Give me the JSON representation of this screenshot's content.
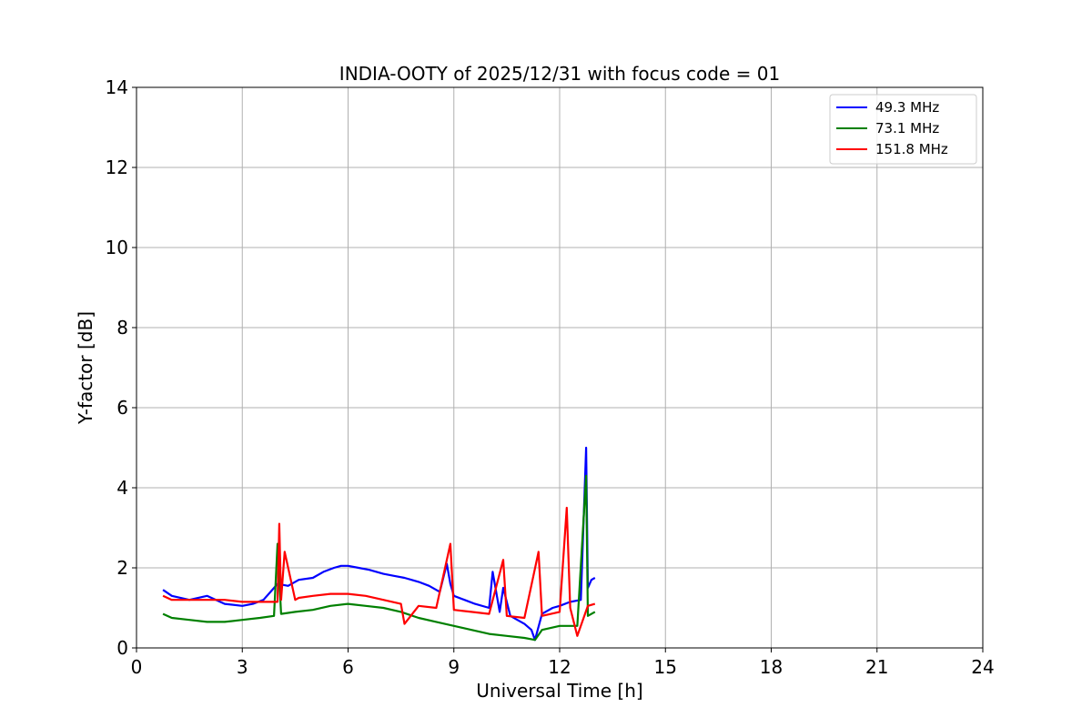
{
  "chart_data": {
    "type": "line",
    "title": "INDIA-OOTY of 2025/12/31 with focus code = 01",
    "xlabel": "Universal Time [h]",
    "ylabel": "Y-factor [dB]",
    "xlim": [
      0,
      24
    ],
    "ylim": [
      0,
      14
    ],
    "xticks": [
      0,
      3,
      6,
      9,
      12,
      15,
      18,
      21,
      24
    ],
    "yticks": [
      0,
      2,
      4,
      6,
      8,
      10,
      12,
      14
    ],
    "grid": true,
    "legend_position": "top-right",
    "series": [
      {
        "name": "49.3 MHz",
        "legend_label": "  49.3 MHz",
        "color": "#0000ff",
        "x": [
          0.75,
          1.0,
          1.5,
          2.0,
          2.5,
          3.0,
          3.3,
          3.6,
          3.8,
          4.0,
          4.3,
          4.6,
          5.0,
          5.3,
          5.6,
          5.8,
          6.0,
          6.3,
          6.6,
          7.0,
          7.3,
          7.6,
          8.0,
          8.3,
          8.6,
          8.8,
          8.9,
          9.0,
          9.3,
          9.6,
          10.0,
          10.1,
          10.3,
          10.4,
          10.6,
          10.8,
          11.0,
          11.2,
          11.3,
          11.5,
          11.8,
          12.0,
          12.3,
          12.6,
          12.75,
          12.8,
          12.9,
          13.0
        ],
        "y": [
          1.45,
          1.3,
          1.2,
          1.3,
          1.1,
          1.05,
          1.1,
          1.2,
          1.4,
          1.6,
          1.55,
          1.7,
          1.75,
          1.9,
          2.0,
          2.05,
          2.05,
          2.0,
          1.95,
          1.85,
          1.8,
          1.75,
          1.65,
          1.55,
          1.4,
          2.1,
          1.6,
          1.3,
          1.2,
          1.1,
          1.0,
          1.9,
          0.9,
          1.5,
          0.8,
          0.7,
          0.6,
          0.45,
          0.2,
          0.85,
          1.0,
          1.05,
          1.15,
          1.2,
          5.0,
          1.5,
          1.7,
          1.75
        ]
      },
      {
        "name": "73.1 MHz",
        "legend_label": "  73.1 MHz",
        "color": "#008000",
        "x": [
          0.75,
          1.0,
          1.5,
          2.0,
          2.5,
          3.0,
          3.5,
          3.9,
          4.0,
          4.1,
          4.5,
          5.0,
          5.5,
          6.0,
          6.5,
          7.0,
          7.5,
          8.0,
          8.5,
          9.0,
          9.5,
          10.0,
          10.5,
          11.0,
          11.3,
          11.5,
          12.0,
          12.5,
          12.75,
          12.8,
          13.0
        ],
        "y": [
          0.85,
          0.75,
          0.7,
          0.65,
          0.65,
          0.7,
          0.75,
          0.8,
          2.6,
          0.85,
          0.9,
          0.95,
          1.05,
          1.1,
          1.05,
          1.0,
          0.9,
          0.75,
          0.65,
          0.55,
          0.45,
          0.35,
          0.3,
          0.25,
          0.2,
          0.45,
          0.55,
          0.55,
          4.3,
          0.8,
          0.9
        ]
      },
      {
        "name": "151.8 MHz",
        "legend_label": "  151.8 MHz",
        "color": "#ff0000",
        "x": [
          0.75,
          1.0,
          1.5,
          2.0,
          2.5,
          3.0,
          3.5,
          4.0,
          4.05,
          4.1,
          4.2,
          4.5,
          4.6,
          5.0,
          5.5,
          6.0,
          6.5,
          7.0,
          7.5,
          7.6,
          8.0,
          8.5,
          8.9,
          9.0,
          9.5,
          10.0,
          10.4,
          10.5,
          11.0,
          11.4,
          11.5,
          12.0,
          12.2,
          12.3,
          12.5,
          12.8,
          13.0
        ],
        "y": [
          1.3,
          1.2,
          1.2,
          1.2,
          1.2,
          1.15,
          1.15,
          1.15,
          3.1,
          1.2,
          2.4,
          1.2,
          1.25,
          1.3,
          1.35,
          1.35,
          1.3,
          1.2,
          1.1,
          0.6,
          1.05,
          1.0,
          2.6,
          0.95,
          0.9,
          0.85,
          2.2,
          0.8,
          0.75,
          2.4,
          0.8,
          0.9,
          3.5,
          1.0,
          0.3,
          1.05,
          1.1
        ]
      }
    ]
  }
}
